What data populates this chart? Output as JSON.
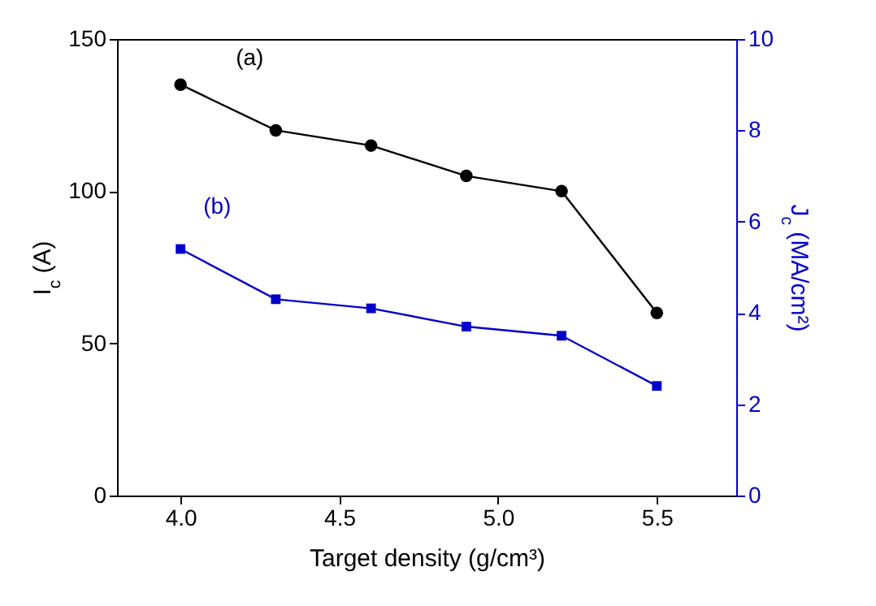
{
  "chart_data": {
    "type": "line",
    "xlabel": "Target density (g/cm³)",
    "ylabel": "I$_{c}$ (A)",
    "y2label": "J$_{c}$ (MA/cm²)",
    "x": [
      4.0,
      4.3,
      4.6,
      4.9,
      5.2,
      5.5
    ],
    "series": [
      {
        "name": "(a)",
        "color": "#000000",
        "marker": "circle",
        "values": [
          135,
          120,
          115,
          105,
          100,
          60
        ]
      },
      {
        "name": "(b)",
        "color": "#0000cc",
        "marker": "square",
        "axis": "y2",
        "values": [
          5.4,
          4.3,
          4.1,
          3.7,
          3.5,
          2.4
        ]
      }
    ],
    "xlim": [
      3.8,
      5.75
    ],
    "xticks": [
      {
        "value": 4.0,
        "label": "4.0"
      },
      4.5,
      {
        "value": 5.0,
        "label": "5.0"
      },
      5.5
    ],
    "ylim": [
      0,
      150
    ],
    "yticks": [
      0,
      50,
      100,
      150
    ],
    "y2lim": [
      0,
      10
    ],
    "y2ticks": [
      0,
      2,
      4,
      6,
      8,
      10
    ],
    "grid": false,
    "line_style": "solid"
  }
}
